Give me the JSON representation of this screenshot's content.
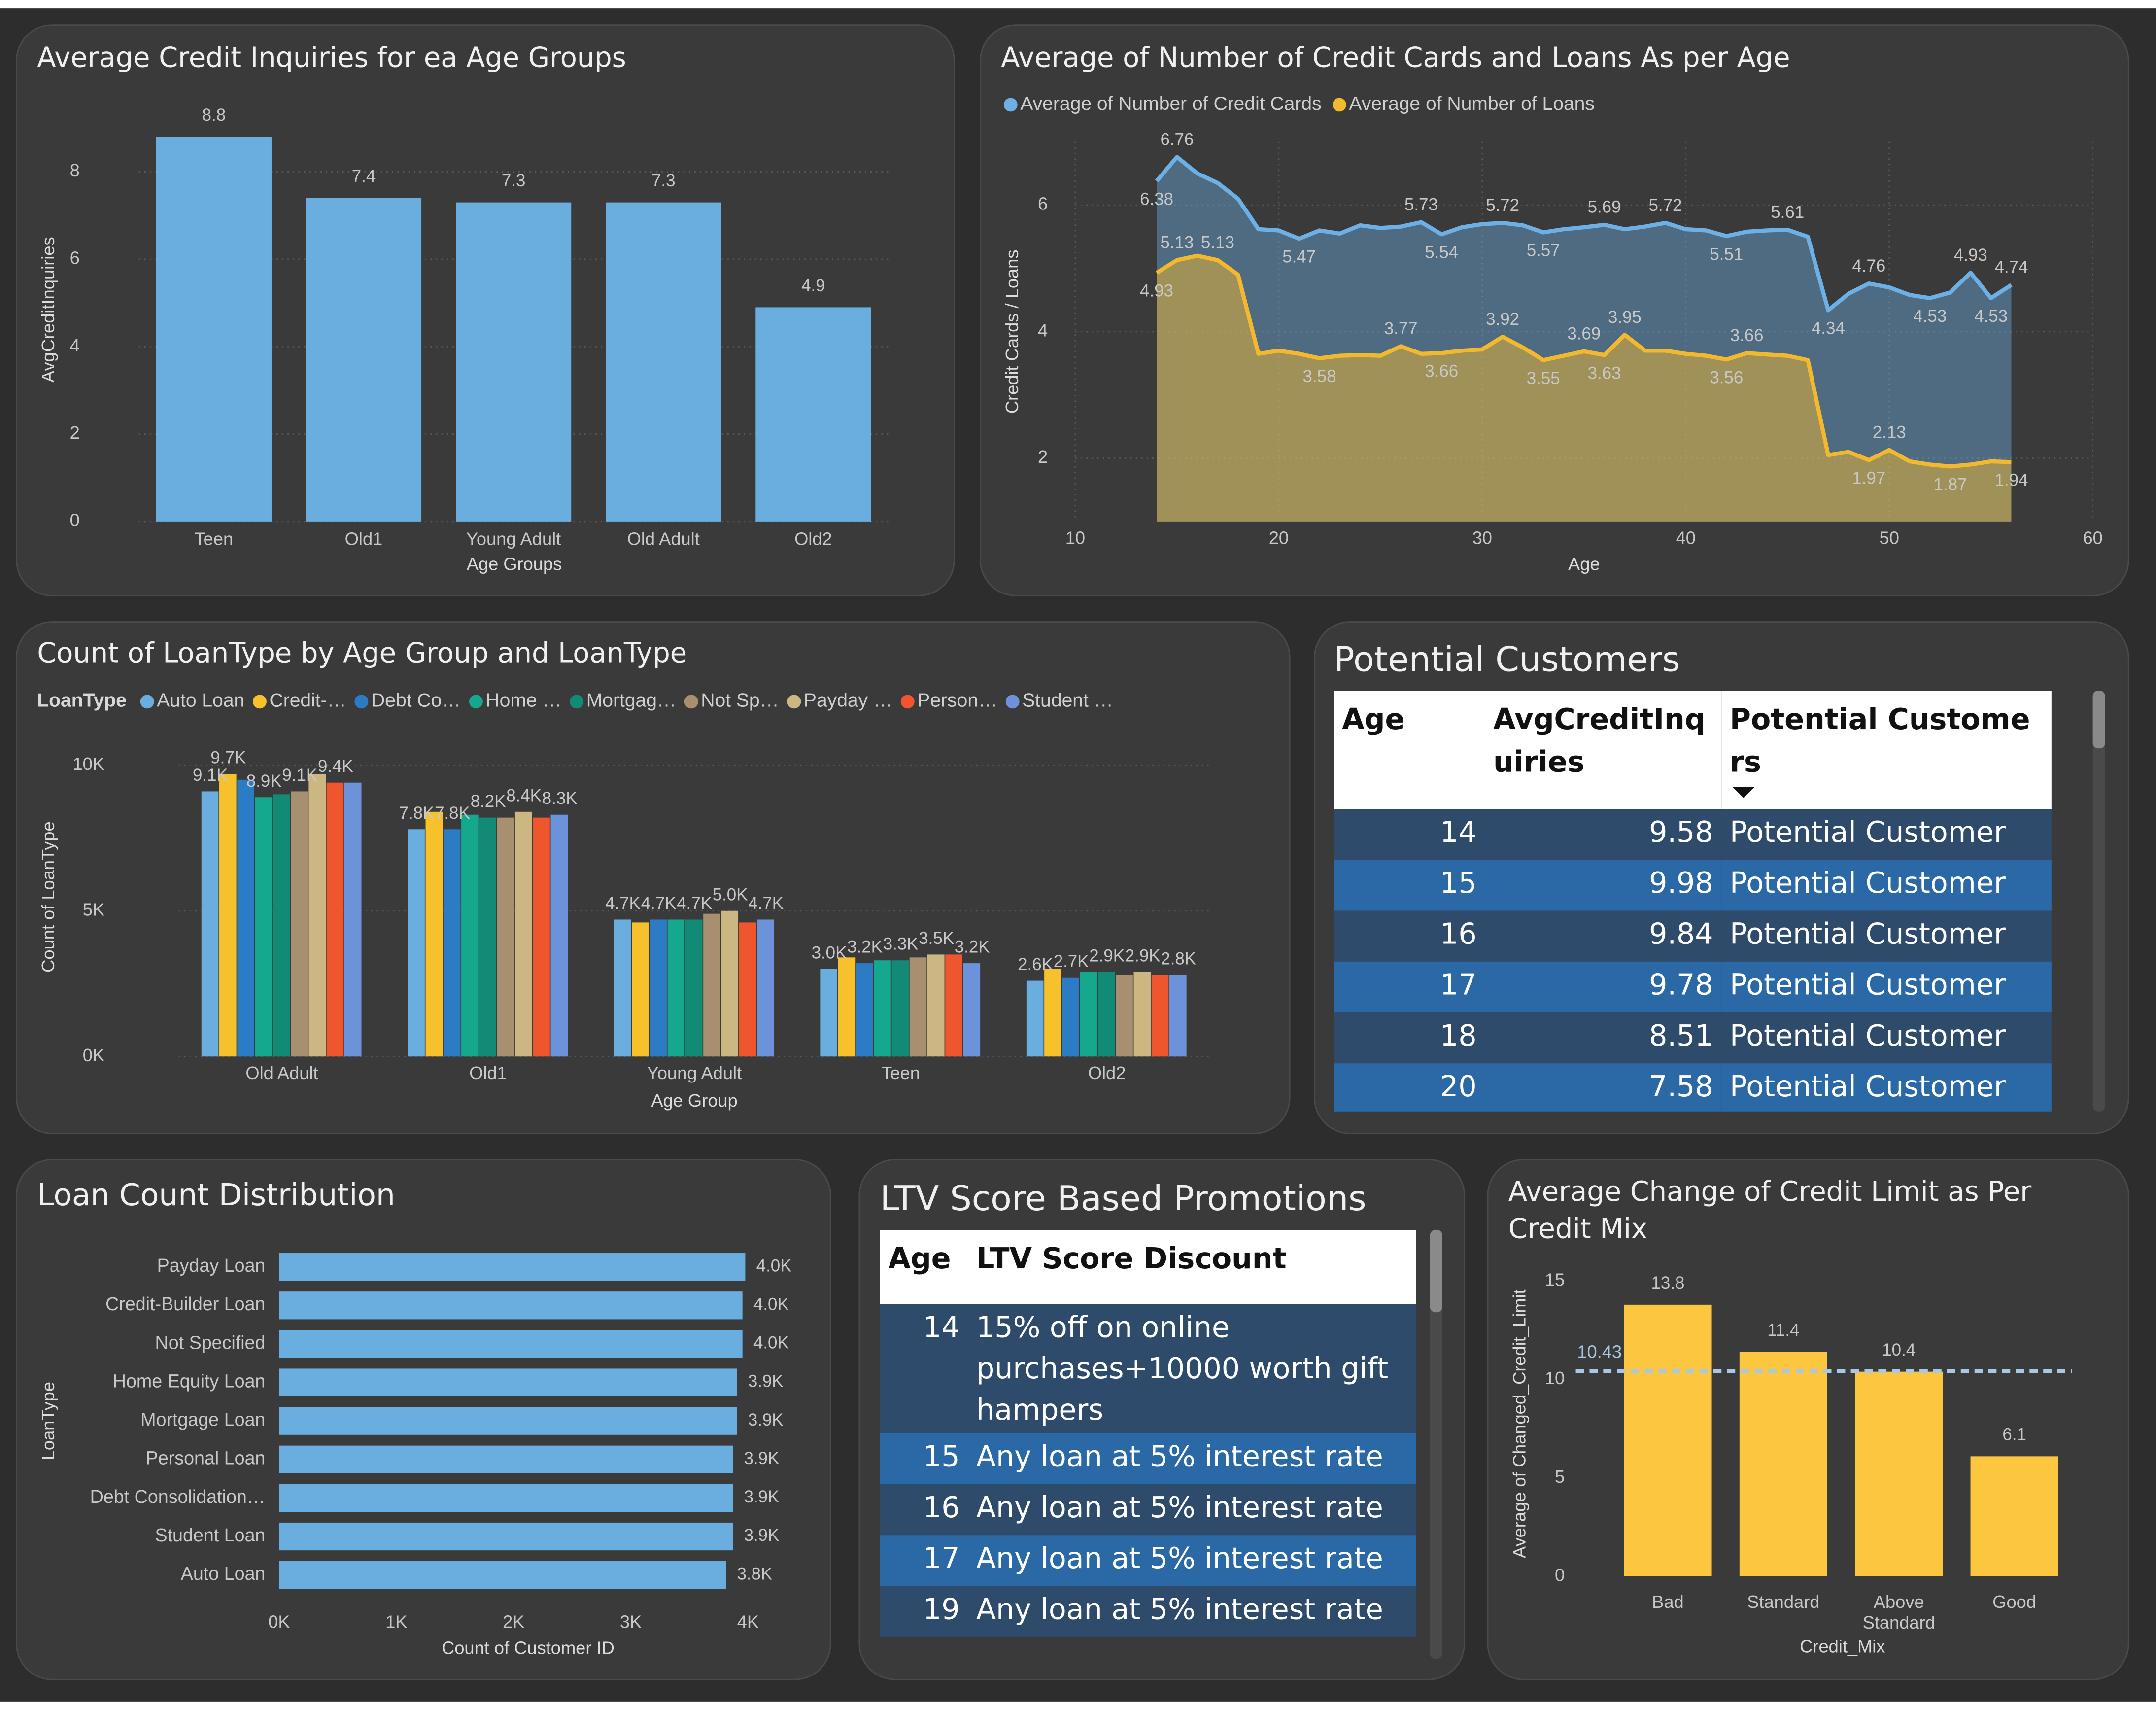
{
  "chart_data": [
    {
      "type": "bar",
      "title": "Average Credit Inquiries for ea Age Groups",
      "x_label": "Age Groups",
      "y_label": "AvgCreditInquiries",
      "categories": [
        "Teen",
        "Old1",
        "Young Adult",
        "Old Adult",
        "Old2"
      ],
      "values": [
        8.8,
        7.4,
        7.3,
        7.3,
        4.9
      ],
      "color": "#6aaee0",
      "ylim": [
        0,
        9
      ],
      "yticks": [
        0,
        2,
        4,
        6,
        8
      ],
      "grid": true
    },
    {
      "type": "line",
      "title": "Average of Number of Credit Cards and Loans As per Age",
      "x_label": "Age",
      "y_label": "Credit Cards / Loans",
      "x": [
        14,
        15,
        16,
        17,
        18,
        19,
        20,
        21,
        22,
        23,
        24,
        25,
        26,
        27,
        28,
        29,
        30,
        31,
        32,
        33,
        34,
        35,
        36,
        37,
        38,
        39,
        40,
        41,
        42,
        43,
        44,
        45,
        46,
        47,
        48,
        49,
        50,
        51,
        52,
        53,
        54,
        55,
        56
      ],
      "series": [
        {
          "name": "Average of Number of Credit Cards",
          "color": "#6cb0e6",
          "values": [
            6.38,
            6.76,
            6.5,
            6.35,
            6.1,
            5.62,
            5.6,
            5.47,
            5.6,
            5.55,
            5.68,
            5.64,
            5.66,
            5.73,
            5.54,
            5.65,
            5.7,
            5.72,
            5.68,
            5.57,
            5.62,
            5.65,
            5.69,
            5.62,
            5.66,
            5.72,
            5.62,
            5.6,
            5.51,
            5.58,
            5.6,
            5.61,
            5.5,
            4.34,
            4.6,
            4.76,
            4.7,
            4.58,
            4.53,
            4.62,
            4.93,
            4.53,
            4.74
          ],
          "value_labels": [
            "6.38",
            "6.76",
            null,
            null,
            null,
            null,
            null,
            "5.47",
            null,
            null,
            null,
            null,
            null,
            "5.73",
            "5.54",
            null,
            null,
            "5.72",
            null,
            "5.57",
            null,
            null,
            "5.69",
            null,
            null,
            "5.72",
            null,
            null,
            "5.51",
            null,
            null,
            "5.61",
            null,
            "4.34",
            null,
            "4.76",
            null,
            null,
            "4.53",
            null,
            "4.93",
            "4.53",
            "4.74"
          ]
        },
        {
          "name": "Average of Number of Loans",
          "color": "#f2b82e",
          "values": [
            4.93,
            5.13,
            5.2,
            5.13,
            4.9,
            3.65,
            3.7,
            3.65,
            3.58,
            3.62,
            3.63,
            3.62,
            3.77,
            3.65,
            3.66,
            3.7,
            3.72,
            3.92,
            3.75,
            3.55,
            3.62,
            3.69,
            3.63,
            3.95,
            3.7,
            3.7,
            3.65,
            3.62,
            3.56,
            3.66,
            3.64,
            3.62,
            3.55,
            2.05,
            2.1,
            1.97,
            2.13,
            1.95,
            1.9,
            1.87,
            1.9,
            1.95,
            1.94
          ],
          "value_labels": [
            "4.93",
            "5.13",
            null,
            "5.13",
            null,
            null,
            null,
            null,
            "3.58",
            null,
            null,
            null,
            "3.77",
            null,
            "3.66",
            null,
            null,
            "3.92",
            null,
            "3.55",
            null,
            "3.69",
            "3.63",
            "3.95",
            null,
            null,
            null,
            null,
            "3.56",
            "3.66",
            null,
            null,
            null,
            null,
            null,
            "1.97",
            "2.13",
            null,
            null,
            "1.87",
            null,
            null,
            "1.94"
          ]
        }
      ],
      "xlim": [
        10,
        60
      ],
      "xticks": [
        10,
        20,
        30,
        40,
        50,
        60
      ],
      "ylim": [
        1,
        7
      ],
      "yticks": [
        2,
        4,
        6
      ],
      "grid": true,
      "area": true
    },
    {
      "type": "grouped_bar",
      "title": "Count of LoanType by Age Group and LoanType",
      "legend_title": "LoanType",
      "x_label": "Age Group",
      "y_label": "Count of LoanType",
      "categories": [
        "Old Adult",
        "Old1",
        "Young Adult",
        "Teen",
        "Old2"
      ],
      "series": [
        {
          "name": "Auto Loan",
          "color": "#6aaee0",
          "values": [
            9100,
            7800,
            4700,
            3000,
            2600
          ],
          "value_labels": [
            "9.1K",
            "7.8K",
            "4.7K",
            "3.0K",
            "2.6K"
          ]
        },
        {
          "name": "Credit-…",
          "color": "#f7c12c",
          "values": [
            9700,
            8400,
            4600,
            3400,
            3000
          ],
          "value_labels": [
            "9.7K",
            null,
            null,
            null,
            null
          ]
        },
        {
          "name": "Debt Co…",
          "color": "#2b7cc4",
          "values": [
            9500,
            7800,
            4700,
            3200,
            2700
          ],
          "value_labels": [
            null,
            "7.8K",
            "4.7K",
            "3.2K",
            "2.7K"
          ]
        },
        {
          "name": "Home …",
          "color": "#14a88e",
          "values": [
            8900,
            8300,
            4700,
            3300,
            2900
          ],
          "value_labels": [
            "8.9K",
            null,
            null,
            null,
            null
          ]
        },
        {
          "name": "Mortgag…",
          "color": "#118a76",
          "values": [
            9000,
            8200,
            4700,
            3300,
            2900
          ],
          "value_labels": [
            null,
            "8.2K",
            "4.7K",
            "3.3K",
            "2.9K"
          ]
        },
        {
          "name": "Not Sp…",
          "color": "#a88f6f",
          "values": [
            9100,
            8200,
            4900,
            3400,
            2800
          ],
          "value_labels": [
            "9.1K",
            null,
            null,
            null,
            null
          ]
        },
        {
          "name": "Payday …",
          "color": "#ccb783",
          "values": [
            9700,
            8400,
            5000,
            3500,
            2900
          ],
          "value_labels": [
            null,
            "8.4K",
            "5.0K",
            "3.5K",
            "2.9K"
          ]
        },
        {
          "name": "Person…",
          "color": "#f0562d",
          "values": [
            9400,
            8200,
            4600,
            3500,
            2800
          ],
          "value_labels": [
            "9.4K",
            null,
            null,
            null,
            null
          ]
        },
        {
          "name": "Student …",
          "color": "#6c93da",
          "values": [
            9400,
            8300,
            4700,
            3200,
            2800
          ],
          "value_labels": [
            null,
            "8.3K",
            "4.7K",
            "3.2K",
            "2.8K"
          ]
        }
      ],
      "ylim": [
        0,
        11000
      ],
      "yticks": [
        {
          "value": 0,
          "label": "0K"
        },
        {
          "value": 5000,
          "label": "5K"
        },
        {
          "value": 10000,
          "label": "10K"
        }
      ],
      "grid": true
    },
    {
      "type": "hbar",
      "title": "Loan Count Distribution",
      "x_label": "Count of Customer ID",
      "y_label": "LoanType",
      "categories": [
        "Payday Loan",
        "Credit-Builder Loan",
        "Not Specified",
        "Home Equity Loan",
        "Mortgage Loan",
        "Personal Loan",
        "Debt Consolidation…",
        "Student Loan",
        "Auto Loan"
      ],
      "values": [
        3977,
        3953,
        3953,
        3906,
        3906,
        3871,
        3871,
        3871,
        3812
      ],
      "value_labels": [
        "4.0K",
        "4.0K",
        "4.0K",
        "3.9K",
        "3.9K",
        "3.9K",
        "3.9K",
        "3.9K",
        "3.8K"
      ],
      "color": "#6aaee0",
      "xlim": [
        0,
        4000
      ],
      "xticks": [
        {
          "value": 0,
          "label": "0K"
        },
        {
          "value": 1000,
          "label": "1K"
        },
        {
          "value": 2000,
          "label": "2K"
        },
        {
          "value": 3000,
          "label": "3K"
        },
        {
          "value": 4000,
          "label": "4K"
        }
      ]
    },
    {
      "type": "bar",
      "title": "Average Change of Credit Limit as Per Credit Mix",
      "x_label": "Credit_Mix",
      "y_label": "Average of Changed_Credit_Limit",
      "categories": [
        "Bad",
        "Standard",
        "Above Standard",
        "Good"
      ],
      "values": [
        13.8,
        11.4,
        10.4,
        6.1
      ],
      "color": "#fcc63f",
      "ylim": [
        0,
        16
      ],
      "yticks": [
        0,
        5,
        10,
        15
      ],
      "grid": false,
      "reference_line": 10.43,
      "reference_color": "#a9c7e6"
    }
  ],
  "tables": [
    {
      "title": "Potential Customers",
      "columns": [
        "Age",
        "AvgCreditInquiries",
        "Potential Customers"
      ],
      "rows": [
        [
          14,
          9.58,
          "Potential Customer"
        ],
        [
          15,
          9.98,
          "Potential Customer"
        ],
        [
          16,
          9.84,
          "Potential Customer"
        ],
        [
          17,
          9.78,
          "Potential Customer"
        ],
        [
          18,
          8.51,
          "Potential Customer"
        ],
        [
          20,
          7.58,
          "Potential Customer"
        ]
      ]
    },
    {
      "title": "LTV Score Based Promotions",
      "columns": [
        "Age",
        "LTV Score Discount"
      ],
      "rows": [
        [
          14,
          "15% off on online purchases+10000 worth gift hampers"
        ],
        [
          15,
          "Any loan at 5% interest rate"
        ],
        [
          16,
          "Any loan at 5% interest rate"
        ],
        [
          17,
          "Any loan at 5% interest rate"
        ],
        [
          19,
          "Any loan at 5% interest rate"
        ]
      ]
    }
  ]
}
